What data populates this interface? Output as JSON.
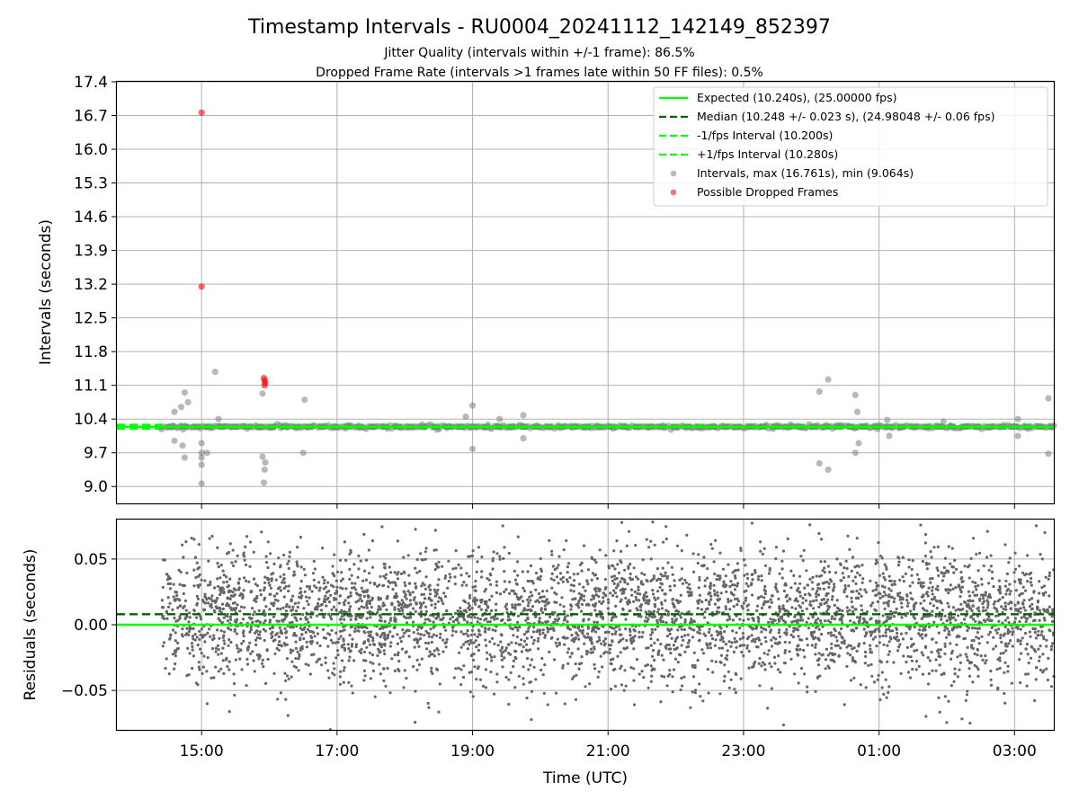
{
  "figure": {
    "title": "Timestamp Intervals - RU0004_20241112_142149_852397",
    "subtitle_1": "Jitter Quality (intervals within +/-1 frame): 86.5%",
    "subtitle_2": "Dropped Frame Rate (intervals >1 frames late within 50 FF files): 0.5%"
  },
  "colors": {
    "expected": "#00ff00",
    "median": "#006400",
    "fps_interval": "#00ff00",
    "intervals": "#808080",
    "dropped": "#ff0000",
    "residuals": "#666666",
    "grid": "#b0b0b0"
  },
  "chart_data": [
    {
      "type": "scatter",
      "panel": "top",
      "ylabel": "Intervals (seconds)",
      "ylim": [
        8.65,
        17.4
      ],
      "yticks": [
        "9.0",
        "9.7",
        "10.4",
        "11.1",
        "11.8",
        "12.5",
        "13.2",
        "13.9",
        "14.6",
        "15.3",
        "16.0",
        "16.7",
        "17.4"
      ],
      "xlim_hours": [
        13.75,
        27.58
      ],
      "grid": "both",
      "legend_position": "upper right",
      "reference_lines": [
        {
          "name": "Expected (10.240s), (25.00000 fps)",
          "y": 10.24,
          "style": "solid",
          "color": "#00ff00"
        },
        {
          "name": "Median (10.248 +/- 0.023 s), (24.98048 +/- 0.06 fps)",
          "y": 10.248,
          "style": "dashed",
          "color": "#006400"
        },
        {
          "name": "-1/fps Interval (10.200s)",
          "y": 10.2,
          "style": "dashed",
          "color": "#00ff00"
        },
        {
          "name": "+1/fps Interval (10.280s)",
          "y": 10.28,
          "style": "dashed",
          "color": "#00ff00"
        }
      ],
      "scatter_series": [
        {
          "name": "Intervals, max (16.761s), min (9.064s)",
          "color": "#808080"
        },
        {
          "name": "Possible Dropped Frames",
          "color": "#ff0000"
        }
      ],
      "intervals_time_range": [
        "14:25",
        "03:35"
      ],
      "intervals_core_band": [
        10.18,
        10.3
      ],
      "notable_intervals": [
        {
          "t": 15.0,
          "y": 9.06
        },
        {
          "t": 15.0,
          "y": 9.45
        },
        {
          "t": 15.0,
          "y": 9.6
        },
        {
          "t": 15.0,
          "y": 9.7
        },
        {
          "t": 15.0,
          "y": 9.9
        },
        {
          "t": 14.6,
          "y": 9.95
        },
        {
          "t": 14.72,
          "y": 9.85
        },
        {
          "t": 14.75,
          "y": 9.6
        },
        {
          "t": 14.6,
          "y": 10.55
        },
        {
          "t": 14.7,
          "y": 10.65
        },
        {
          "t": 14.75,
          "y": 10.95
        },
        {
          "t": 14.8,
          "y": 10.75
        },
        {
          "t": 15.2,
          "y": 11.38
        },
        {
          "t": 15.25,
          "y": 10.4
        },
        {
          "t": 15.08,
          "y": 9.7
        },
        {
          "t": 15.92,
          "y": 9.08
        },
        {
          "t": 15.93,
          "y": 9.35
        },
        {
          "t": 15.94,
          "y": 9.5
        },
        {
          "t": 15.9,
          "y": 9.62
        },
        {
          "t": 15.9,
          "y": 10.93
        },
        {
          "t": 16.52,
          "y": 10.8
        },
        {
          "t": 16.5,
          "y": 9.7
        },
        {
          "t": 18.9,
          "y": 10.45
        },
        {
          "t": 19.0,
          "y": 10.68
        },
        {
          "t": 19.0,
          "y": 9.78
        },
        {
          "t": 19.4,
          "y": 10.4
        },
        {
          "t": 19.75,
          "y": 10.48
        },
        {
          "t": 19.75,
          "y": 10.0
        },
        {
          "t": 24.12,
          "y": 10.97
        },
        {
          "t": 24.12,
          "y": 9.48
        },
        {
          "t": 24.25,
          "y": 11.22
        },
        {
          "t": 24.25,
          "y": 9.35
        },
        {
          "t": 24.65,
          "y": 10.9
        },
        {
          "t": 24.68,
          "y": 10.55
        },
        {
          "t": 24.7,
          "y": 9.9
        },
        {
          "t": 24.65,
          "y": 9.7
        },
        {
          "t": 25.12,
          "y": 10.38
        },
        {
          "t": 25.15,
          "y": 10.05
        },
        {
          "t": 25.95,
          "y": 10.35
        },
        {
          "t": 27.05,
          "y": 10.4
        },
        {
          "t": 27.05,
          "y": 10.05
        },
        {
          "t": 27.5,
          "y": 10.83
        },
        {
          "t": 27.5,
          "y": 9.68
        }
      ],
      "dropped_frames": [
        {
          "t": 15.0,
          "y": 16.76
        },
        {
          "t": 15.0,
          "y": 13.15
        },
        {
          "t": 15.92,
          "y": 11.25
        },
        {
          "t": 15.93,
          "y": 11.2
        },
        {
          "t": 15.94,
          "y": 11.15
        },
        {
          "t": 15.93,
          "y": 11.1
        }
      ]
    },
    {
      "type": "scatter",
      "panel": "bottom",
      "xlabel": "Time (UTC)",
      "ylabel": "Residuals (seconds)",
      "ylim": [
        -0.08,
        0.08
      ],
      "yticks": [
        "−0.05",
        "0.00",
        "0.05"
      ],
      "xlim_hours": [
        13.75,
        27.58
      ],
      "xticks": [
        "15:00",
        "17:00",
        "19:00",
        "21:00",
        "23:00",
        "01:00",
        "03:00"
      ],
      "grid": "both",
      "reference_lines": [
        {
          "y": 0.0,
          "style": "solid",
          "color": "#00ff00"
        },
        {
          "y": 0.008,
          "style": "dashed",
          "color": "#006400"
        }
      ],
      "residuals_time_range": [
        "14:25",
        "03:35"
      ],
      "residuals_spread_sd": 0.025,
      "residuals_point_count": 4200
    }
  ]
}
